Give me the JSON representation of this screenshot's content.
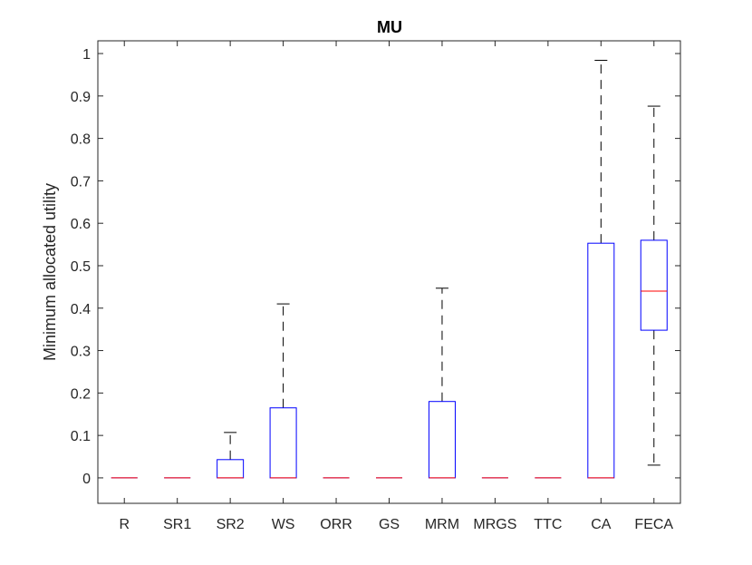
{
  "chart_data": {
    "type": "boxplot",
    "title": "MU",
    "xlabel": "",
    "ylabel": "Minimum allocated utility",
    "ylim": [
      -0.06,
      1.03
    ],
    "yticks": [
      0,
      0.1,
      0.2,
      0.3,
      0.4,
      0.5,
      0.6,
      0.7,
      0.8,
      0.9,
      1
    ],
    "ytick_labels": [
      "0",
      "0.1",
      "0.2",
      "0.3",
      "0.4",
      "0.5",
      "0.6",
      "0.7",
      "0.8",
      "0.9",
      "1"
    ],
    "categories": [
      "R",
      "SR1",
      "SR2",
      "WS",
      "ORR",
      "GS",
      "MRM",
      "MRGS",
      "TTC",
      "CA",
      "FECA"
    ],
    "boxes": [
      {
        "min": 0,
        "q1": 0,
        "median": 0,
        "q3": 0,
        "max": 0
      },
      {
        "min": 0,
        "q1": 0,
        "median": 0,
        "q3": 0,
        "max": 0
      },
      {
        "min": 0,
        "q1": 0,
        "median": 0,
        "q3": 0.043,
        "max": 0.107
      },
      {
        "min": 0,
        "q1": 0,
        "median": 0,
        "q3": 0.165,
        "max": 0.41
      },
      {
        "min": 0,
        "q1": 0,
        "median": 0,
        "q3": 0,
        "max": 0
      },
      {
        "min": 0,
        "q1": 0,
        "median": 0,
        "q3": 0,
        "max": 0
      },
      {
        "min": 0,
        "q1": 0,
        "median": 0,
        "q3": 0.18,
        "max": 0.447
      },
      {
        "min": 0,
        "q1": 0,
        "median": 0,
        "q3": 0,
        "max": 0
      },
      {
        "min": 0,
        "q1": 0,
        "median": 0,
        "q3": 0,
        "max": 0
      },
      {
        "min": 0,
        "q1": 0,
        "median": 0,
        "q3": 0.553,
        "max": 0.984
      },
      {
        "min": 0.03,
        "q1": 0.348,
        "median": 0.44,
        "q3": 0.56,
        "max": 0.876
      }
    ],
    "box_color": "#0000ff",
    "median_color": "#ff0000",
    "whisker_color": "#000000",
    "axis_color": "#262626",
    "grid": false,
    "legend": "none"
  }
}
